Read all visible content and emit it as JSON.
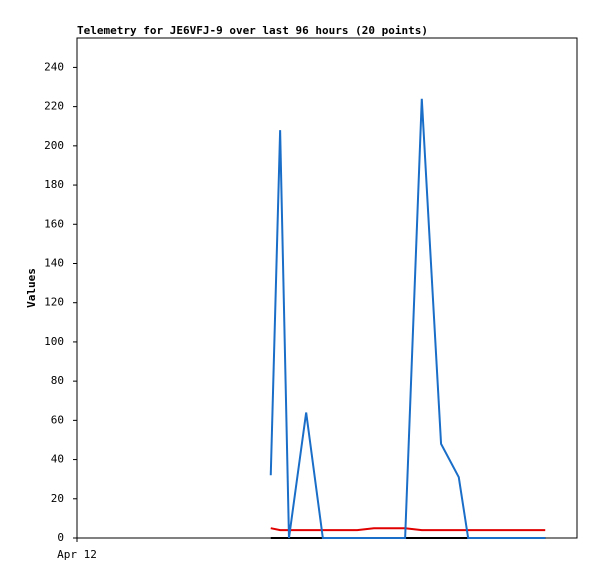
{
  "chart_data": {
    "type": "line",
    "title": "Telemetry for JE6VFJ-9 over last 96 hours (20 points)",
    "y_label": "Values",
    "x": [
      37.2,
      39.0,
      40.7,
      44.0,
      47.2,
      50.5,
      53.8,
      57.0,
      60.1,
      63.0,
      66.2,
      69.9,
      73.3,
      75.1,
      77.4,
      80.3,
      83.1,
      85.1,
      87.6,
      89.9
    ],
    "xlim": [
      0,
      96
    ],
    "xticks": [
      {
        "value": 0,
        "label": "Apr 12"
      }
    ],
    "ylim": [
      0,
      255
    ],
    "yticks": [
      0,
      20,
      40,
      60,
      80,
      100,
      120,
      140,
      160,
      180,
      200,
      220,
      240
    ],
    "series": [
      {
        "color": "#000000",
        "values": [
          0,
          0,
          0,
          0,
          0,
          0,
          0,
          0,
          0,
          0,
          0,
          0,
          0,
          0,
          0,
          0,
          0,
          0,
          0,
          0
        ]
      },
      {
        "color": "#e00000",
        "values": [
          5,
          4,
          4,
          4,
          4,
          4,
          4,
          5,
          5,
          5,
          4,
          4,
          4,
          4,
          4,
          4,
          4,
          4,
          4,
          4
        ]
      },
      {
        "color": "#1a6ec8",
        "values": [
          32,
          208,
          0,
          64,
          0,
          0,
          0,
          0,
          0,
          0,
          224,
          48,
          31,
          0,
          0,
          0,
          0,
          0,
          0,
          0
        ]
      }
    ]
  }
}
